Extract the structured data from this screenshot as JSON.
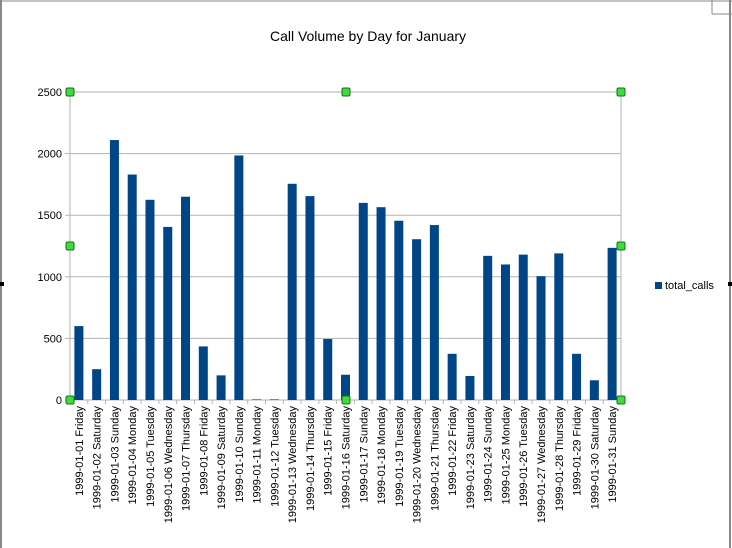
{
  "chart_data": {
    "type": "bar",
    "title": "Call Volume by Day for January",
    "xlabel": "",
    "ylabel": "",
    "ylim": [
      0,
      2500
    ],
    "yticks": [
      0,
      500,
      1000,
      1500,
      2000,
      2500
    ],
    "grid": true,
    "legend_position": "right",
    "categories": [
      "1999-01-01 Friday",
      "1999-01-02 Saturday",
      "1999-01-03 Sunday",
      "1999-01-04 Monday",
      "1999-01-05 Tuesday",
      "1999-01-06 Wednesday",
      "1999-01-07 Thursday",
      "1999-01-08 Friday",
      "1999-01-09 Saturday",
      "1999-01-10 Sunday",
      "1999-01-11 Monday",
      "1999-01-12 Tuesday",
      "1999-01-13 Wednesday",
      "1999-01-14 Thursday",
      "1999-01-15 Friday",
      "1999-01-16 Saturday",
      "1999-01-17 Sunday",
      "1999-01-18 Monday",
      "1999-01-19 Tuesday",
      "1999-01-20 Wednesday",
      "1999-01-21 Thursday",
      "1999-01-22 Friday",
      "1999-01-23 Saturday",
      "1999-01-24 Sunday",
      "1999-01-25 Monday",
      "1999-01-26 Tuesday",
      "1999-01-27 Wednesday",
      "1999-01-28 Thursday",
      "1999-01-29 Friday",
      "1999-01-30 Saturday",
      "1999-01-31 Sunday"
    ],
    "series": [
      {
        "name": "total_calls",
        "color": "#004586",
        "values": [
          600,
          250,
          2110,
          1830,
          1625,
          1405,
          1650,
          435,
          200,
          1985,
          5,
          5,
          1755,
          1655,
          495,
          205,
          1600,
          1565,
          1455,
          1305,
          1420,
          375,
          195,
          1170,
          1100,
          1180,
          1005,
          1190,
          375,
          160,
          1235
        ]
      }
    ]
  },
  "colors": {
    "bar": "#004586",
    "grid": "#b3b3b3",
    "handle": "#3ddc3d"
  }
}
